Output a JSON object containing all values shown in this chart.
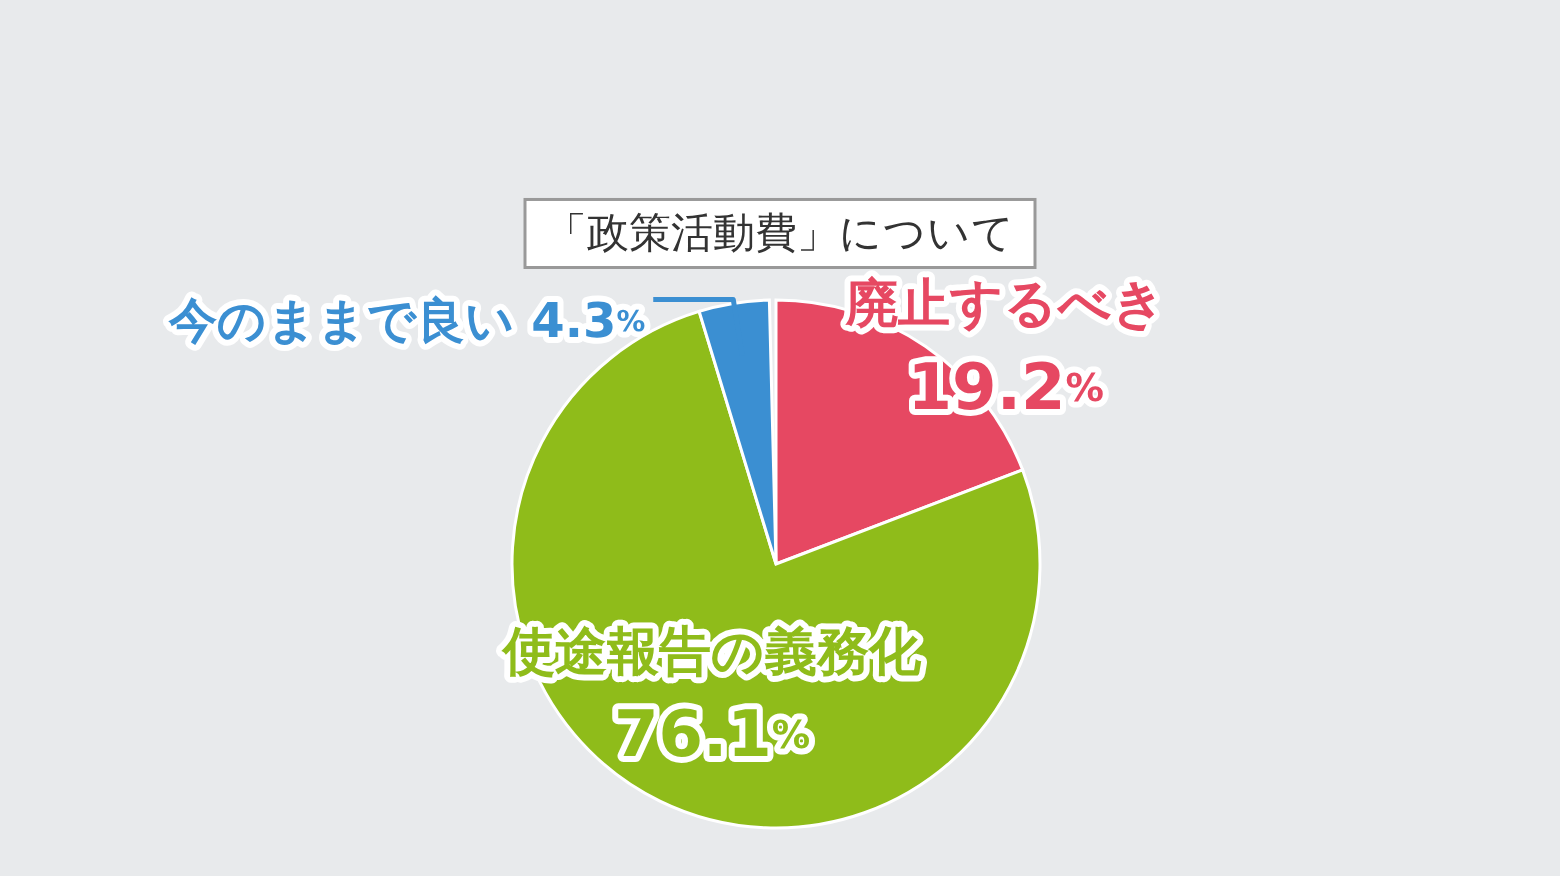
{
  "chart_data": {
    "type": "pie",
    "title": "「政策活動費」について",
    "categories": [
      "廃止するべき",
      "使途報告の義務化",
      "今のままで良い"
    ],
    "values": [
      19.2,
      76.1,
      4.3
    ],
    "colors": [
      "#e64862",
      "#8fbc1a",
      "#3b8fd2"
    ],
    "value_labels": [
      "19.2%",
      "76.1%",
      "4.3%"
    ]
  }
}
